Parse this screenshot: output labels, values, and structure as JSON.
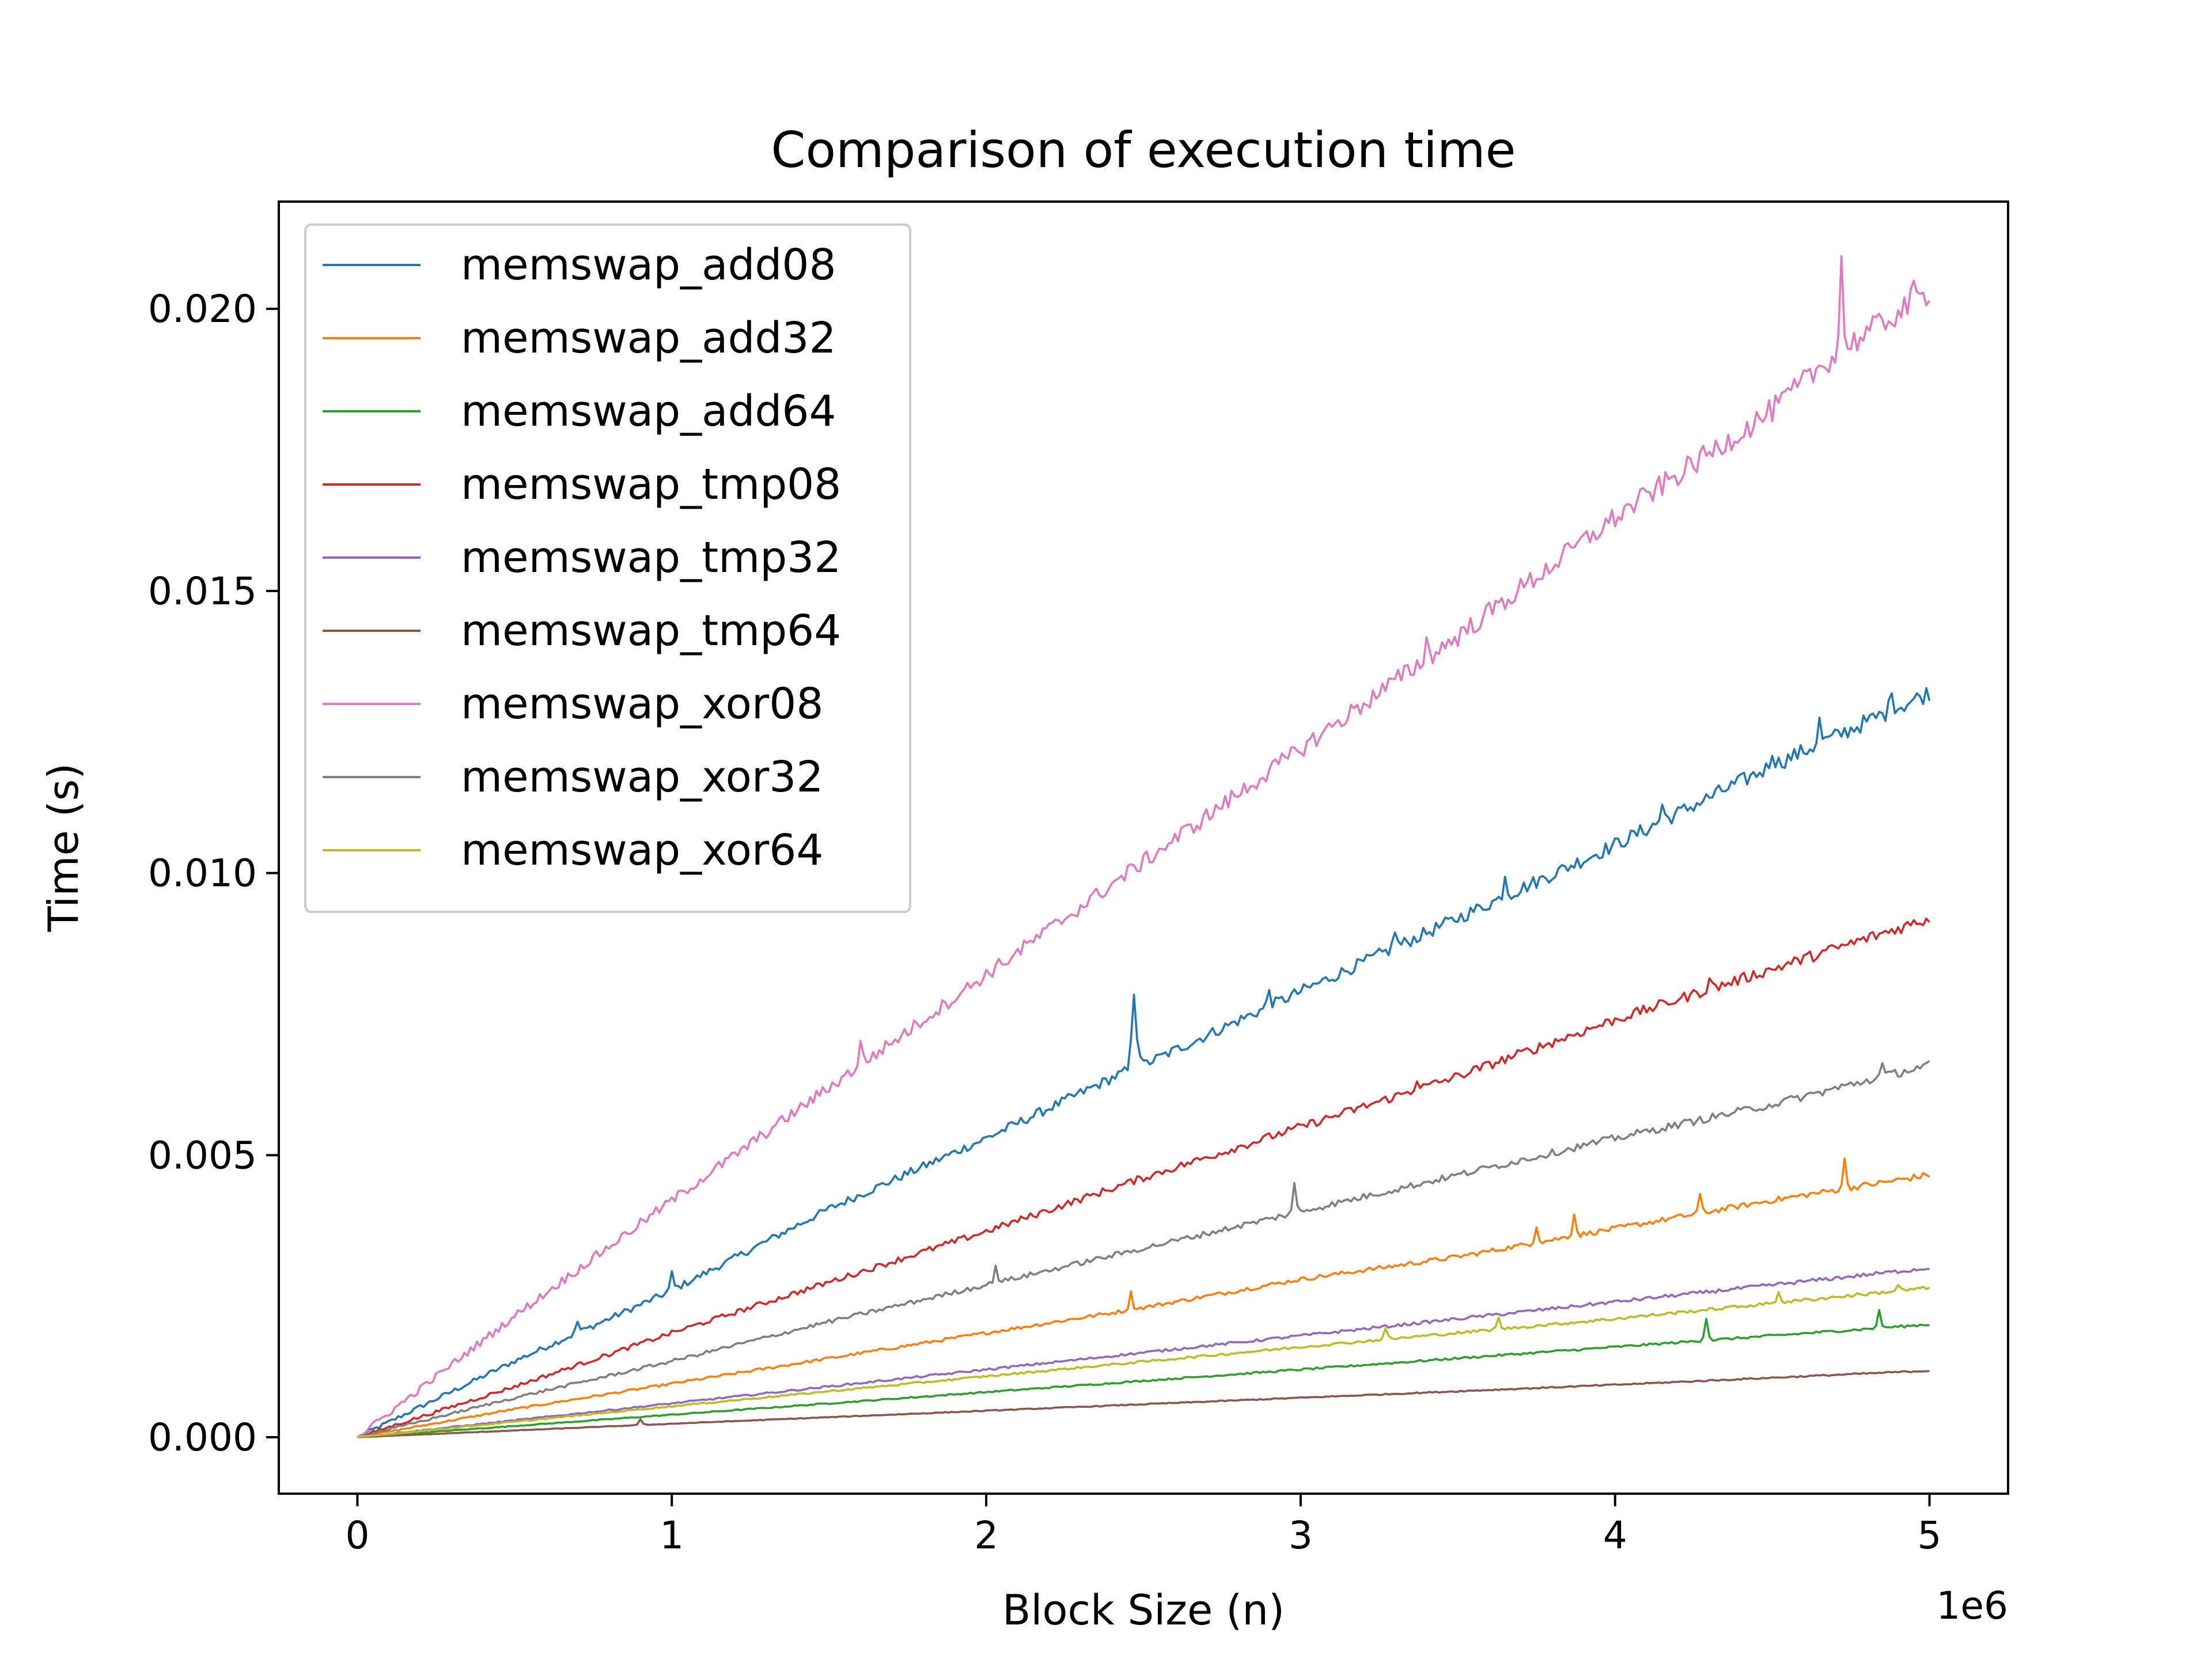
{
  "chart_data": {
    "type": "line",
    "title": "Comparison of execution time",
    "xlabel": "Block Size (n)",
    "ylabel": "Time (s)",
    "x_offset_label": "1e6",
    "xlim": [
      -0.25,
      5.25
    ],
    "ylim": [
      -0.001,
      0.0219
    ],
    "x_ticks": [
      0,
      1,
      2,
      3,
      4,
      5
    ],
    "x_tick_labels": [
      "0",
      "1",
      "2",
      "3",
      "4",
      "5"
    ],
    "y_ticks": [
      0.0,
      0.005,
      0.01,
      0.015,
      0.02
    ],
    "y_tick_labels": [
      "0.000",
      "0.005",
      "0.010",
      "0.015",
      "0.020"
    ],
    "grid": false,
    "legend_position": "upper-left",
    "x_range": [
      0,
      5
    ],
    "series": [
      {
        "name": "memswap_add08",
        "color": "#1f77b4",
        "points": [
          [
            0,
            0.0
          ],
          [
            0.5,
            0.00135
          ],
          [
            1,
            0.0026
          ],
          [
            1.5,
            0.00405
          ],
          [
            2,
            0.0053
          ],
          [
            2.45,
            0.0065
          ],
          [
            2.47,
            0.0072
          ],
          [
            2.5,
            0.0066
          ],
          [
            3,
            0.0079
          ],
          [
            3.5,
            0.0092
          ],
          [
            4,
            0.0105
          ],
          [
            4.5,
            0.0119
          ],
          [
            5,
            0.0132
          ]
        ],
        "spikes": [
          [
            0.7,
            0.0002
          ],
          [
            1.0,
            0.0003
          ],
          [
            2.47,
            0.0007
          ],
          [
            2.9,
            0.0003
          ],
          [
            3.3,
            0.0003
          ],
          [
            3.65,
            0.0004
          ],
          [
            4.15,
            0.0003
          ],
          [
            4.5,
            0.0003
          ],
          [
            4.65,
            0.0004
          ],
          [
            4.88,
            0.0004
          ]
        ]
      },
      {
        "name": "memswap_add32",
        "color": "#ff7f0e",
        "points": [
          [
            0,
            0.0
          ],
          [
            0.5,
            0.0005
          ],
          [
            1,
            0.00095
          ],
          [
            1.5,
            0.0014
          ],
          [
            2,
            0.00185
          ],
          [
            2.45,
            0.00225
          ],
          [
            3,
            0.0028
          ],
          [
            3.5,
            0.0032
          ],
          [
            4,
            0.0037
          ],
          [
            4.5,
            0.0042
          ],
          [
            5,
            0.00465
          ]
        ],
        "spikes": [
          [
            2.46,
            0.0003
          ],
          [
            3.75,
            0.0003
          ],
          [
            3.87,
            0.0004
          ],
          [
            4.27,
            0.0003
          ],
          [
            4.73,
            0.0005
          ]
        ]
      },
      {
        "name": "memswap_add64",
        "color": "#2ca02c",
        "points": [
          [
            0,
            0.0
          ],
          [
            1,
            0.0004
          ],
          [
            2,
            0.0008
          ],
          [
            3,
            0.0012
          ],
          [
            4,
            0.0016
          ],
          [
            5,
            0.002
          ]
        ],
        "spikes": [
          [
            4.29,
            0.0004
          ],
          [
            4.84,
            0.0003
          ]
        ]
      },
      {
        "name": "memswap_tmp08",
        "color": "#d62728",
        "points": [
          [
            0,
            0.0
          ],
          [
            0.5,
            0.0009
          ],
          [
            1,
            0.00185
          ],
          [
            1.5,
            0.00275
          ],
          [
            2,
            0.00365
          ],
          [
            2.5,
            0.0046
          ],
          [
            3,
            0.0055
          ],
          [
            3.5,
            0.0064
          ],
          [
            4,
            0.0074
          ],
          [
            4.5,
            0.0083
          ],
          [
            5,
            0.0092
          ]
        ],
        "spikes": [
          [
            3.37,
            0.0002
          ],
          [
            4.3,
            0.0002
          ]
        ]
      },
      {
        "name": "memswap_tmp32",
        "color": "#9467bd",
        "points": [
          [
            0,
            0.0
          ],
          [
            1,
            0.0006
          ],
          [
            2,
            0.0012
          ],
          [
            3,
            0.0018
          ],
          [
            4,
            0.0024
          ],
          [
            5,
            0.003
          ]
        ],
        "spikes": []
      },
      {
        "name": "memswap_tmp64",
        "color": "#8c564b",
        "points": [
          [
            0,
            0.0
          ],
          [
            1,
            0.00024
          ],
          [
            2,
            0.00047
          ],
          [
            3,
            0.0007
          ],
          [
            4,
            0.00093
          ],
          [
            5,
            0.00118
          ]
        ],
        "spikes": [
          [
            0.9,
            0.0001
          ]
        ]
      },
      {
        "name": "memswap_xor08",
        "color": "#e377c2",
        "points": [
          [
            0,
            0.0
          ],
          [
            0.5,
            0.00215
          ],
          [
            1,
            0.0042
          ],
          [
            1.5,
            0.0062
          ],
          [
            2,
            0.0082
          ],
          [
            2.5,
            0.0102
          ],
          [
            3,
            0.0122
          ],
          [
            3.5,
            0.0142
          ],
          [
            4,
            0.0163
          ],
          [
            4.5,
            0.0182
          ],
          [
            4.7,
            0.0192
          ],
          [
            5,
            0.0203
          ]
        ],
        "spikes": [
          [
            1.6,
            0.0004
          ],
          [
            3.4,
            0.0003
          ],
          [
            4.72,
            0.0016
          ],
          [
            4.95,
            0.0002
          ]
        ]
      },
      {
        "name": "memswap_xor32",
        "color": "#7f7f7f",
        "points": [
          [
            0,
            0.0
          ],
          [
            0.5,
            0.0007
          ],
          [
            1,
            0.00135
          ],
          [
            1.5,
            0.00205
          ],
          [
            2,
            0.0027
          ],
          [
            2.5,
            0.00335
          ],
          [
            3,
            0.004
          ],
          [
            3.5,
            0.00465
          ],
          [
            4,
            0.0053
          ],
          [
            4.5,
            0.0059
          ],
          [
            5,
            0.0066
          ]
        ],
        "spikes": [
          [
            2.03,
            0.0003
          ],
          [
            2.98,
            0.0005
          ],
          [
            4.85,
            0.0002
          ]
        ]
      },
      {
        "name": "memswap_xor64",
        "color": "#bcbd22",
        "points": [
          [
            0,
            0.0
          ],
          [
            1,
            0.00055
          ],
          [
            2,
            0.00108
          ],
          [
            3,
            0.0016
          ],
          [
            4,
            0.0021
          ],
          [
            5,
            0.00265
          ]
        ],
        "spikes": [
          [
            3.27,
            0.0002
          ],
          [
            3.63,
            0.0002
          ],
          [
            4.52,
            0.0002
          ],
          [
            4.9,
            0.0001
          ]
        ]
      }
    ]
  }
}
